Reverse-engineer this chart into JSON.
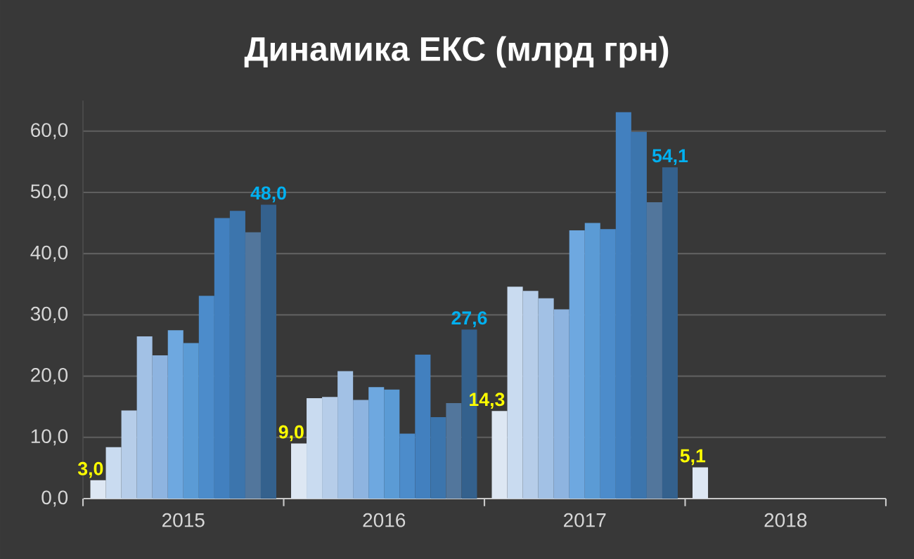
{
  "chart_data": {
    "type": "bar",
    "title": "Динамика ЕКС (млрд грн)",
    "categories": [
      "2015",
      "2016",
      "2017",
      "2018"
    ],
    "series": [
      {
        "color": "#dde7f3",
        "values": [
          3.0,
          9.0,
          14.3,
          5.1
        ],
        "value_labels": [
          "3,0",
          "9,0",
          "14,3",
          "5,1"
        ]
      },
      {
        "color": "#c9dbf0",
        "values": [
          8.4,
          16.4,
          34.6,
          null
        ]
      },
      {
        "color": "#b6cde9",
        "values": [
          14.4,
          16.6,
          33.9,
          null
        ]
      },
      {
        "color": "#a2c1e5",
        "values": [
          26.5,
          20.8,
          32.7,
          null
        ]
      },
      {
        "color": "#8eb4e0",
        "values": [
          23.4,
          16.1,
          30.9,
          null
        ]
      },
      {
        "color": "#6ea8e0",
        "values": [
          27.5,
          18.2,
          43.8,
          null
        ]
      },
      {
        "color": "#5b9bd5",
        "values": [
          25.4,
          17.8,
          45.0,
          null
        ]
      },
      {
        "color": "#4c8ccb",
        "values": [
          33.1,
          10.6,
          44.0,
          null
        ]
      },
      {
        "color": "#4280bf",
        "values": [
          45.8,
          23.5,
          63.1,
          null
        ]
      },
      {
        "color": "#3c75ad",
        "values": [
          47.0,
          13.3,
          59.9,
          null
        ]
      },
      {
        "color": "#52769c",
        "values": [
          43.5,
          15.6,
          48.4,
          null
        ]
      },
      {
        "color": "#34618d",
        "values": [
          48.0,
          27.6,
          54.1,
          null
        ],
        "value_labels": [
          "48,0",
          "27,6",
          "54,1",
          null
        ]
      }
    ],
    "ylim": [
      0,
      65
    ],
    "yticks": [
      {
        "value": 0,
        "label": "0,0"
      },
      {
        "value": 10,
        "label": "10,0"
      },
      {
        "value": 20,
        "label": "20,0"
      },
      {
        "value": 30,
        "label": "30,0"
      },
      {
        "value": 40,
        "label": "40,0"
      },
      {
        "value": 50,
        "label": "50,0"
      },
      {
        "value": 60,
        "label": "60,0"
      }
    ],
    "grid": "y"
  }
}
